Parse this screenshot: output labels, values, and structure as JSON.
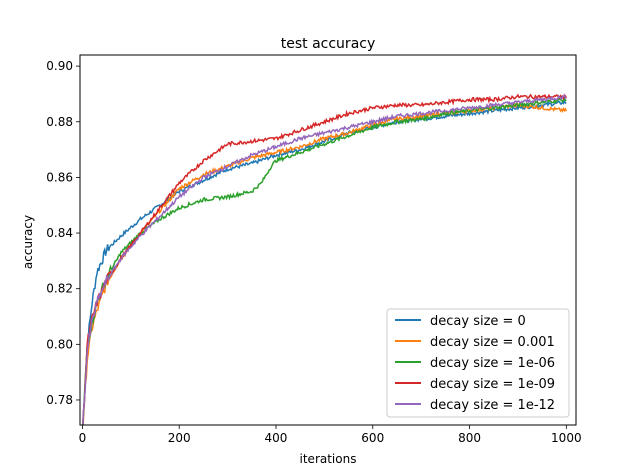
{
  "chart_data": {
    "type": "line",
    "title": "test accuracy",
    "xlabel": "iterations",
    "ylabel": "accuracy",
    "xlim": [
      -5,
      1020
    ],
    "ylim": [
      0.771,
      0.904
    ],
    "xticks": [
      0,
      200,
      400,
      600,
      800,
      1000
    ],
    "yticks": [
      0.78,
      0.8,
      0.82,
      0.84,
      0.86,
      0.88,
      0.9
    ],
    "ytick_labels": [
      "0.78",
      "0.80",
      "0.82",
      "0.84",
      "0.86",
      "0.88",
      "0.90"
    ],
    "grid": false,
    "legend_position": "lower-right",
    "series": [
      {
        "name": "decay size = 0",
        "color": "#1f77b4",
        "x": [
          0,
          10,
          20,
          30,
          50,
          80,
          120,
          160,
          200,
          250,
          300,
          350,
          400,
          450,
          500,
          550,
          600,
          650,
          700,
          750,
          800,
          850,
          900,
          950,
          1000
        ],
        "y": [
          0.768,
          0.8,
          0.815,
          0.826,
          0.834,
          0.839,
          0.845,
          0.85,
          0.855,
          0.859,
          0.863,
          0.865,
          0.868,
          0.87,
          0.873,
          0.876,
          0.878,
          0.88,
          0.881,
          0.882,
          0.883,
          0.884,
          0.885,
          0.886,
          0.887
        ]
      },
      {
        "name": "decay size = 0.001",
        "color": "#ff7f0e",
        "x": [
          0,
          10,
          20,
          30,
          50,
          80,
          120,
          160,
          200,
          250,
          300,
          350,
          400,
          450,
          500,
          550,
          600,
          650,
          700,
          750,
          800,
          850,
          900,
          950,
          1000
        ],
        "y": [
          0.768,
          0.795,
          0.806,
          0.812,
          0.822,
          0.831,
          0.84,
          0.848,
          0.856,
          0.861,
          0.864,
          0.867,
          0.869,
          0.871,
          0.874,
          0.876,
          0.879,
          0.881,
          0.882,
          0.883,
          0.884,
          0.885,
          0.886,
          0.885,
          0.884
        ]
      },
      {
        "name": "decay size = 1e-06",
        "color": "#2ca02c",
        "x": [
          0,
          10,
          20,
          30,
          50,
          80,
          120,
          160,
          200,
          250,
          300,
          350,
          370,
          390,
          400,
          450,
          500,
          550,
          600,
          650,
          700,
          750,
          800,
          850,
          900,
          950,
          1000
        ],
        "y": [
          0.768,
          0.8,
          0.808,
          0.815,
          0.824,
          0.833,
          0.84,
          0.845,
          0.849,
          0.852,
          0.853,
          0.855,
          0.858,
          0.864,
          0.866,
          0.869,
          0.872,
          0.875,
          0.878,
          0.88,
          0.881,
          0.883,
          0.884,
          0.885,
          0.886,
          0.887,
          0.888
        ]
      },
      {
        "name": "decay size = 1e-09",
        "color": "#d62728",
        "x": [
          0,
          10,
          20,
          30,
          50,
          80,
          120,
          160,
          200,
          250,
          300,
          350,
          400,
          450,
          500,
          550,
          600,
          650,
          700,
          750,
          800,
          850,
          900,
          950,
          1000
        ],
        "y": [
          0.768,
          0.8,
          0.809,
          0.815,
          0.823,
          0.831,
          0.84,
          0.849,
          0.858,
          0.866,
          0.872,
          0.873,
          0.874,
          0.877,
          0.88,
          0.883,
          0.885,
          0.886,
          0.886,
          0.887,
          0.888,
          0.888,
          0.889,
          0.889,
          0.889
        ]
      },
      {
        "name": "decay size = 1e-12",
        "color": "#9467bd",
        "x": [
          0,
          10,
          20,
          30,
          50,
          80,
          120,
          160,
          200,
          250,
          300,
          350,
          400,
          450,
          500,
          550,
          600,
          650,
          700,
          750,
          800,
          850,
          900,
          950,
          1000
        ],
        "y": [
          0.768,
          0.798,
          0.808,
          0.815,
          0.823,
          0.831,
          0.839,
          0.846,
          0.853,
          0.86,
          0.864,
          0.868,
          0.871,
          0.874,
          0.876,
          0.878,
          0.88,
          0.882,
          0.883,
          0.884,
          0.885,
          0.886,
          0.887,
          0.888,
          0.889
        ]
      }
    ]
  }
}
